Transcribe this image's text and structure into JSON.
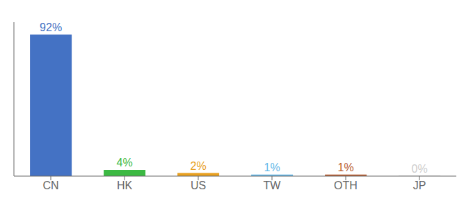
{
  "chart_data": {
    "type": "bar",
    "categories": [
      "CN",
      "HK",
      "US",
      "TW",
      "OTH",
      "JP"
    ],
    "values": [
      92,
      4,
      2,
      1,
      1,
      0.2
    ],
    "value_labels": [
      "92%",
      "4%",
      "2%",
      "1%",
      "1%",
      "0%"
    ],
    "data_labels": true,
    "colors": [
      "#4472C4",
      "#3CB943",
      "#E8A020",
      "#64B8E8",
      "#B85C30",
      "#CCCCCC"
    ],
    "ylim": [
      0,
      100
    ],
    "grid": false,
    "tick_labels": "x"
  }
}
